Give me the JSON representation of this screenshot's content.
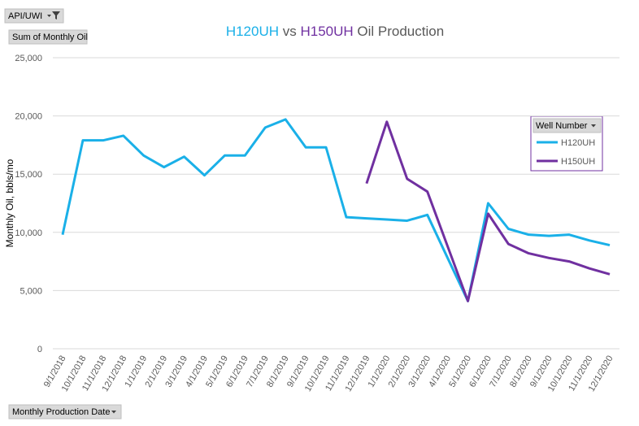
{
  "chart_data": {
    "type": "line",
    "title_parts": [
      {
        "text": "H120UH",
        "color": "#1ab0e8"
      },
      {
        "text": " vs ",
        "color": "#595959"
      },
      {
        "text": "H150UH",
        "color": "#7030a0"
      },
      {
        "text": " Oil Production",
        "color": "#595959"
      }
    ],
    "filter_button": "API/UWI",
    "value_button": "Sum of Monthly Oil",
    "axis_button": "Monthly Production Date",
    "legend_title": "Well Number",
    "ylabel": "Monthly Oil, bbls/mo",
    "categories": [
      "9/1/2018",
      "10/1/2018",
      "11/1/2018",
      "12/1/2018",
      "1/1/2019",
      "2/1/2019",
      "3/1/2019",
      "4/1/2019",
      "5/1/2019",
      "6/1/2019",
      "7/1/2019",
      "8/1/2019",
      "9/1/2019",
      "10/1/2019",
      "11/1/2019",
      "12/1/2019",
      "1/1/2020",
      "2/1/2020",
      "3/1/2020",
      "4/1/2020",
      "5/1/2020",
      "6/1/2020",
      "7/1/2020",
      "8/1/2020",
      "9/1/2020",
      "10/1/2020",
      "11/1/2020",
      "12/1/2020"
    ],
    "series": [
      {
        "name": "H120UH",
        "color": "#1ab0e8",
        "values": [
          9800,
          17900,
          17900,
          18300,
          16600,
          15600,
          16500,
          14900,
          16600,
          16600,
          19000,
          19700,
          17300,
          17300,
          11300,
          11200,
          11100,
          11000,
          11500,
          7800,
          4100,
          12500,
          10300,
          9800,
          9700,
          9800,
          9300,
          8900
        ]
      },
      {
        "name": "H150UH",
        "color": "#7030a0",
        "values": [
          null,
          null,
          null,
          null,
          null,
          null,
          null,
          null,
          null,
          null,
          null,
          null,
          null,
          null,
          null,
          14200,
          19500,
          14600,
          13500,
          8800,
          4100,
          11600,
          9000,
          8200,
          7800,
          7500,
          6900,
          6400
        ]
      }
    ],
    "ylim": [
      0,
      25000
    ],
    "yticks": [
      0,
      {
        "value": 5000,
        "label": "5,000"
      },
      {
        "value": 10000,
        "label": "10,000"
      },
      {
        "value": 15000,
        "label": "15,000"
      },
      {
        "value": 20000,
        "label": "20,000"
      },
      {
        "value": 25000,
        "label": "25,000"
      }
    ],
    "grid": true,
    "legend": "right"
  }
}
